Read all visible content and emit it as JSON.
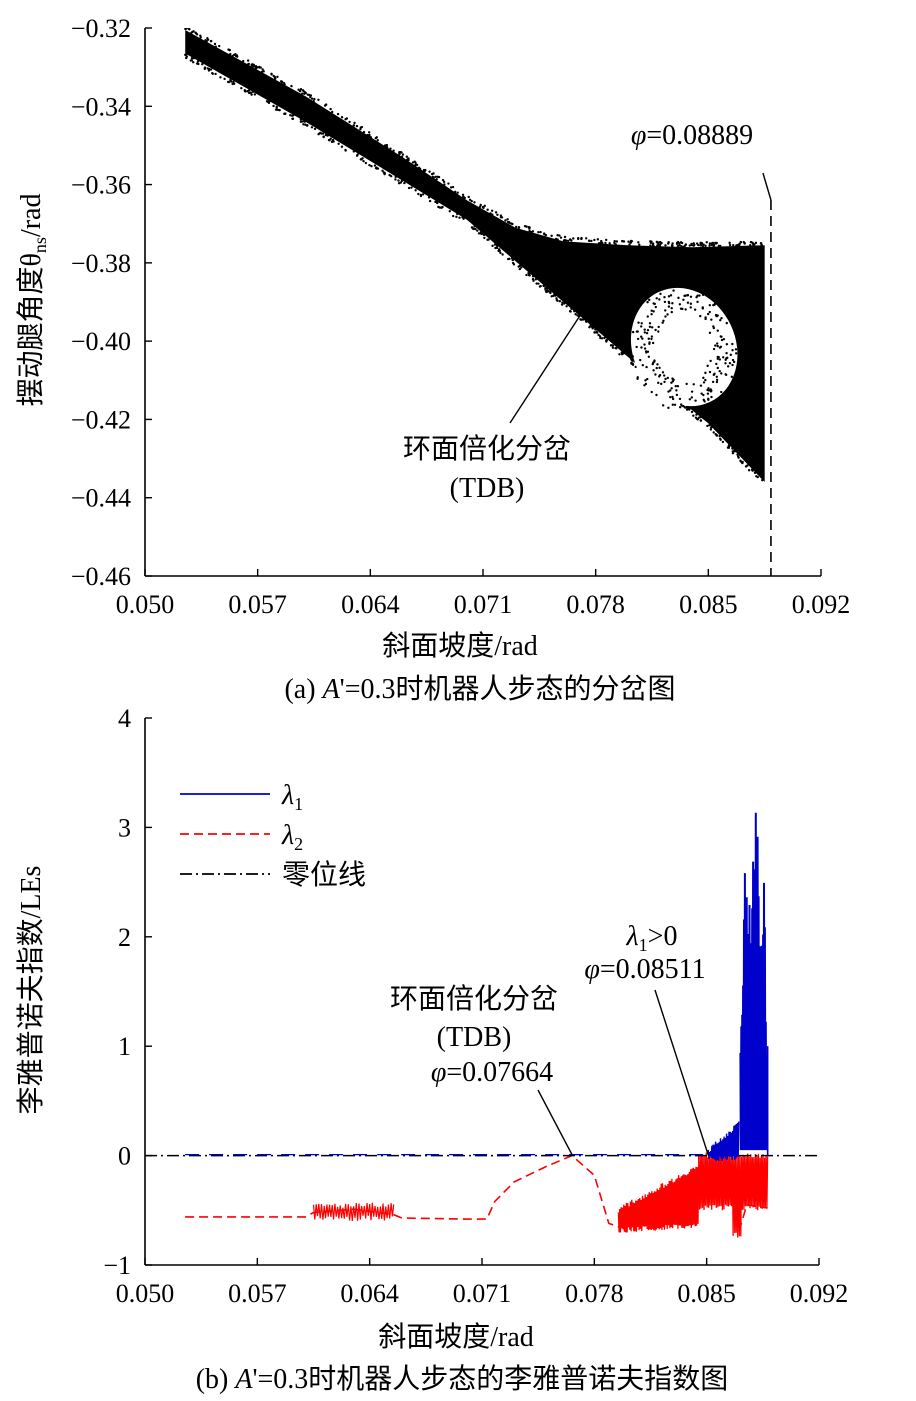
{
  "chart_data": [
    {
      "type": "scatter",
      "caption": "(a) A'=0.3时机器人步态的分岔图",
      "xlabel": "斜面坡度/rad",
      "ylabel": "摆动腿角度θns/rad",
      "xlim": [
        0.05,
        0.092
      ],
      "ylim": [
        -0.46,
        -0.32
      ],
      "x_ticks": [
        "0.050",
        "0.057",
        "0.064",
        "0.071",
        "0.078",
        "0.085",
        "0.092"
      ],
      "y_ticks": [
        "−0.32",
        "−0.34",
        "−0.36",
        "−0.38",
        "−0.40",
        "−0.42",
        "−0.44",
        "−0.46"
      ],
      "color": "#000000",
      "band_upper": [
        [
          0.0525,
          -0.3205
        ],
        [
          0.06,
          -0.3375
        ],
        [
          0.066,
          -0.353
        ],
        [
          0.07,
          -0.364
        ],
        [
          0.073,
          -0.371
        ],
        [
          0.076,
          -0.3745
        ],
        [
          0.08,
          -0.3755
        ],
        [
          0.084,
          -0.376
        ],
        [
          0.0885,
          -0.3755
        ]
      ],
      "band_lower": [
        [
          0.0525,
          -0.3265
        ],
        [
          0.06,
          -0.344
        ],
        [
          0.066,
          -0.359
        ],
        [
          0.07,
          -0.369
        ],
        [
          0.074,
          -0.383
        ],
        [
          0.078,
          -0.397
        ],
        [
          0.082,
          -0.411
        ],
        [
          0.085,
          -0.421
        ],
        [
          0.0885,
          -0.436
        ]
      ],
      "hole_center": [
        0.0835,
        -0.4015
      ],
      "hole_radius": [
        0.0032,
        0.0155
      ],
      "annotations": [
        {
          "text": "φ=0.08889",
          "x": 0.08889
        },
        {
          "text": "环面倍化分岔",
          "line2": "(TDB)",
          "x": 0.0771,
          "y": -0.393
        }
      ]
    },
    {
      "type": "line",
      "caption": "(b) A'=0.3时机器人步态的李雅普诺夫指数图",
      "xlabel": "斜面坡度/rad",
      "ylabel": "李雅普诺夫指数/LEs",
      "xlim": [
        0.05,
        0.092
      ],
      "ylim": [
        -1,
        4
      ],
      "x_ticks": [
        "0.050",
        "0.057",
        "0.064",
        "0.071",
        "0.078",
        "0.085",
        "0.092"
      ],
      "y_ticks": [
        "4",
        "3",
        "2",
        "1",
        "0",
        "−1"
      ],
      "legend": {
        "position": "top-left",
        "entries": [
          {
            "label": "λ1",
            "color": "#0000cc",
            "style": "solid"
          },
          {
            "label": "λ2",
            "color": "#ff0000",
            "style": "dashed"
          },
          {
            "label": "零位线",
            "color": "#000000",
            "style": "dashdot"
          }
        ]
      },
      "series": [
        {
          "name": "λ1",
          "color": "#0000cc",
          "x": [
            0.0525,
            0.06,
            0.07,
            0.0766,
            0.08,
            0.0851,
            0.0856,
            0.086,
            0.0866,
            0.087,
            0.0872,
            0.0874,
            0.0876,
            0.0878,
            0.088,
            0.0882,
            0.0884,
            0.0886,
            0.0888
          ],
          "y": [
            0.0,
            0.0,
            0.0,
            0.0,
            0.0,
            0.0,
            0.06,
            0.12,
            0.18,
            0.25,
            1.2,
            2.75,
            2.4,
            2.6,
            3.3,
            2.9,
            2.3,
            2.7,
            0.4
          ]
        },
        {
          "name": "λ2",
          "color": "#ff0000",
          "x": [
            0.0525,
            0.06,
            0.0605,
            0.063,
            0.0655,
            0.066,
            0.07,
            0.0713,
            0.0718,
            0.073,
            0.075,
            0.0766,
            0.078,
            0.0789,
            0.0795,
            0.08,
            0.082,
            0.0835,
            0.0845,
            0.0855,
            0.0868,
            0.087,
            0.0875,
            0.0888
          ],
          "y": [
            -0.56,
            -0.56,
            -0.52,
            -0.49,
            -0.54,
            -0.57,
            -0.58,
            -0.58,
            -0.42,
            -0.24,
            -0.1,
            0.0,
            -0.18,
            -0.62,
            -0.65,
            -0.55,
            -0.48,
            -0.62,
            -0.35,
            -0.12,
            -0.4,
            -0.7,
            -0.45,
            -0.48
          ]
        },
        {
          "name": "零位线",
          "color": "#000000",
          "x": [
            0.05,
            0.092
          ],
          "y": [
            0,
            0
          ]
        }
      ],
      "annotations": [
        {
          "text": "λ1>0",
          "line2": "φ=0.08511",
          "x": 0.08511,
          "y": 0
        },
        {
          "text": "环面倍化分岔",
          "line2": "(TDB)",
          "line3": "φ=0.07664",
          "x": 0.07664,
          "y": 0
        }
      ]
    }
  ]
}
